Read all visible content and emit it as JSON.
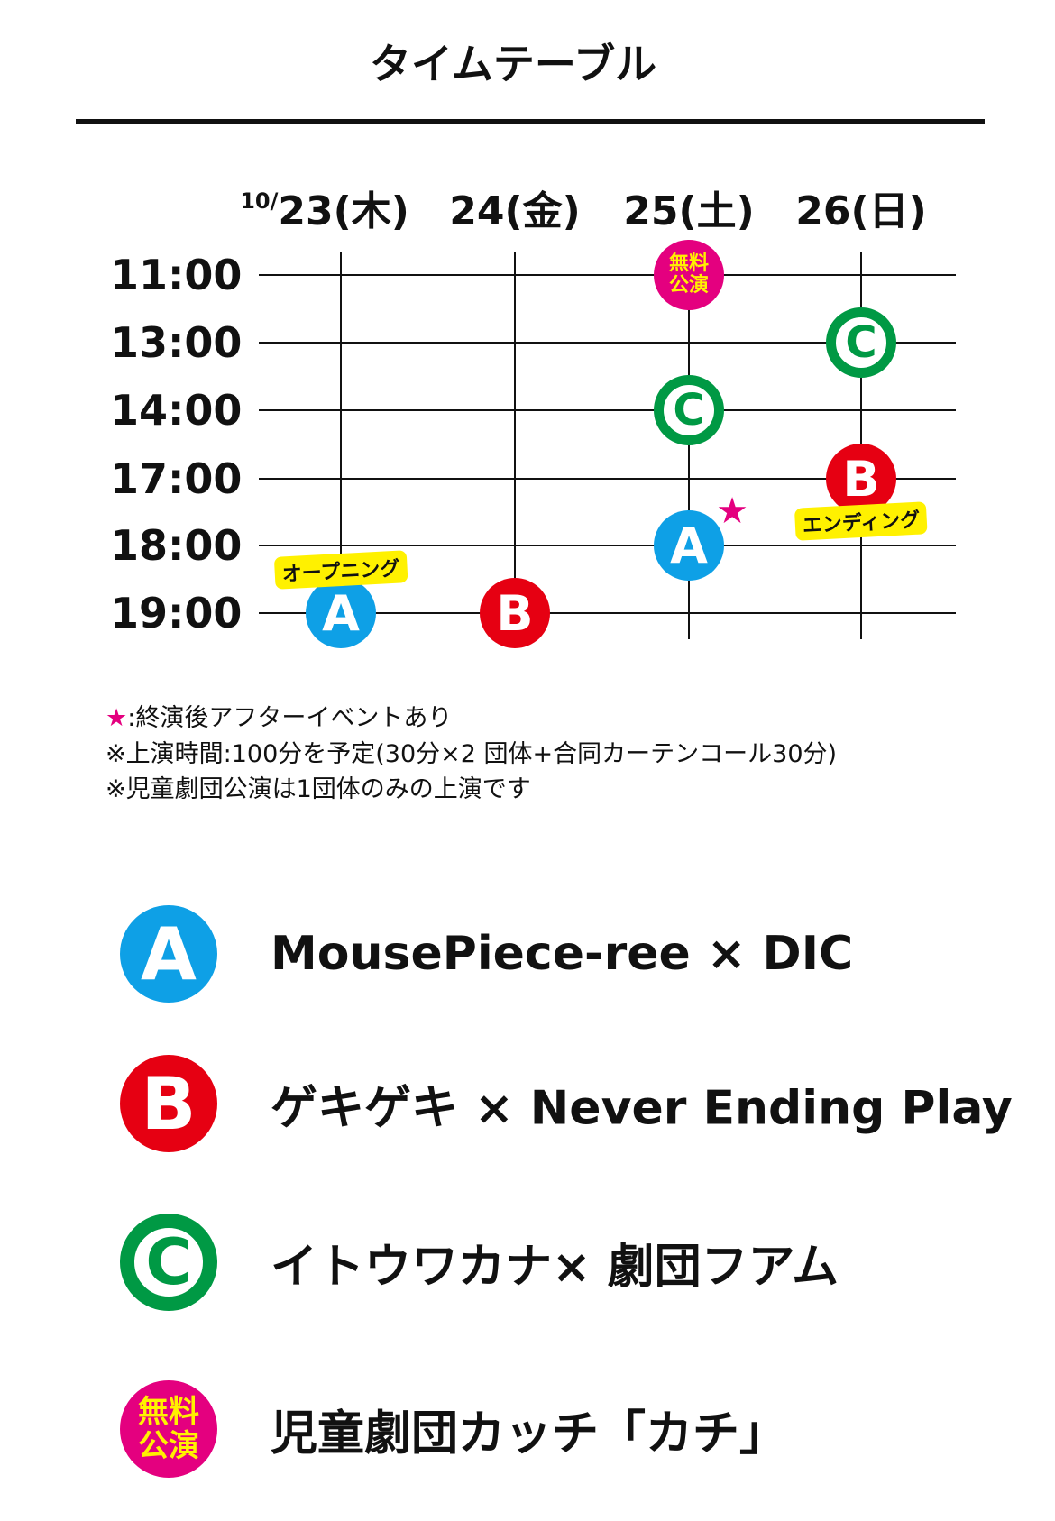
{
  "title": "タイムテーブル",
  "colors": {
    "A": "#0ea0e6",
    "B": "#e60012",
    "C": "#009944",
    "free": "#e4007f",
    "highlight": "#fff100",
    "star": "#e4007f"
  },
  "month_prefix": "10/",
  "days": [
    "23(木)",
    "24(金)",
    "25(土)",
    "26(日)"
  ],
  "times": [
    "11:00",
    "13:00",
    "14:00",
    "17:00",
    "18:00",
    "19:00"
  ],
  "schedule": [
    {
      "day": 0,
      "time": 5,
      "group": "A",
      "label": "A",
      "tag": "オープニング",
      "tag_position": "above"
    },
    {
      "day": 1,
      "time": 5,
      "group": "B",
      "label": "B"
    },
    {
      "day": 2,
      "time": 0,
      "group": "free",
      "label": "無料公演"
    },
    {
      "day": 2,
      "time": 2,
      "group": "C",
      "label": "C"
    },
    {
      "day": 2,
      "time": 4,
      "group": "A",
      "label": "A",
      "star": "★"
    },
    {
      "day": 3,
      "time": 1,
      "group": "C",
      "label": "C"
    },
    {
      "day": 3,
      "time": 3,
      "group": "B",
      "label": "B",
      "tag": "エンディング",
      "tag_position": "below"
    }
  ],
  "notes": {
    "star_symbol": "★",
    "star_note": ":終演後アフターイベントあり",
    "duration_note": "※上演時間:100分を予定(30分×2 団体+合同カーテンコール30分)",
    "children_note": "※児童劇団公演は1団体のみの上演です"
  },
  "legend": [
    {
      "group": "A",
      "icon": "A",
      "text": "MousePiece-ree × DIC"
    },
    {
      "group": "B",
      "icon": "B",
      "text": "ゲキゲキ × Never Ending Play"
    },
    {
      "group": "C",
      "icon": "C",
      "text": "イトウワカナ× 劇団フアム"
    },
    {
      "group": "free",
      "icon": "無料公演",
      "text": "児童劇団カッチ「カチ」"
    }
  ]
}
